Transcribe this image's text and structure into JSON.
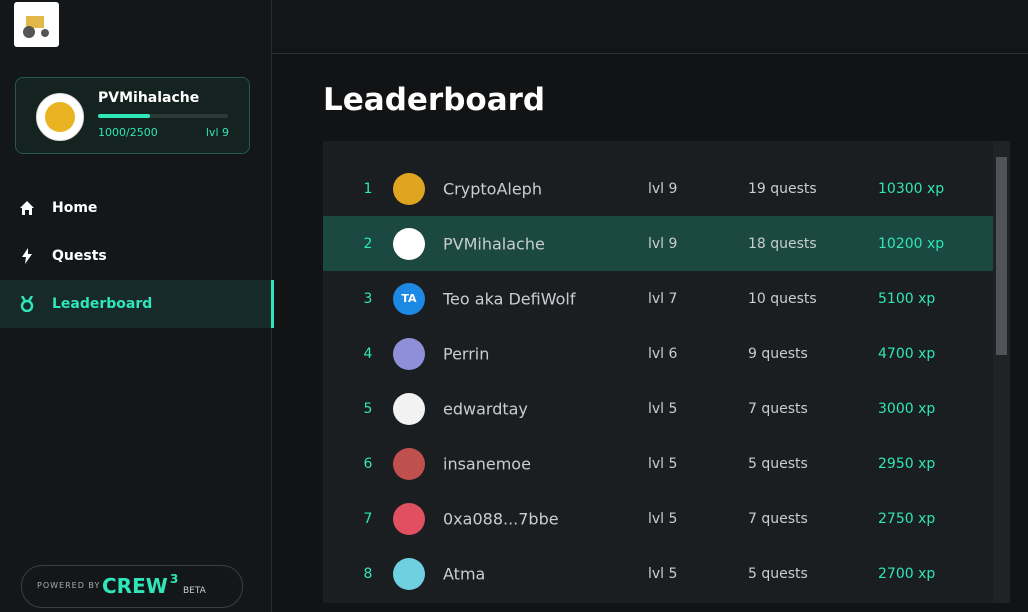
{
  "sidebar": {
    "profile": {
      "name": "PVMihalache",
      "progress": "1000/2500",
      "level": "lvl 9"
    },
    "nav": [
      {
        "label": "Home"
      },
      {
        "label": "Quests"
      },
      {
        "label": "Leaderboard",
        "active": true
      }
    ],
    "footer": {
      "powered": "POWERED BY",
      "brand": "CREW",
      "brand_sup": "3",
      "tag": "BETA"
    }
  },
  "main": {
    "title": "Leaderboard",
    "rows": [
      {
        "rank": "1",
        "name": "CryptoAleph",
        "level": "lvl 9",
        "quests": "19 quests",
        "xp": "10300 xp"
      },
      {
        "rank": "2",
        "name": "PVMihalache",
        "level": "lvl 9",
        "quests": "18 quests",
        "xp": "10200 xp",
        "highlight": true
      },
      {
        "rank": "3",
        "avatar_text": "TA",
        "name": "Teo aka DefiWolf",
        "level": "lvl 7",
        "quests": "10 quests",
        "xp": "5100 xp"
      },
      {
        "rank": "4",
        "name": "Perrin",
        "level": "lvl 6",
        "quests": "9 quests",
        "xp": "4700 xp"
      },
      {
        "rank": "5",
        "name": "edwardtay",
        "level": "lvl 5",
        "quests": "7 quests",
        "xp": "3000 xp"
      },
      {
        "rank": "6",
        "name": "insanemoe",
        "level": "lvl 5",
        "quests": "5 quests",
        "xp": "2950 xp"
      },
      {
        "rank": "7",
        "name": "0xa088...7bbe",
        "level": "lvl 5",
        "quests": "7 quests",
        "xp": "2750 xp"
      },
      {
        "rank": "8",
        "name": "Atma",
        "level": "lvl 5",
        "quests": "5 quests",
        "xp": "2700 xp"
      }
    ]
  }
}
